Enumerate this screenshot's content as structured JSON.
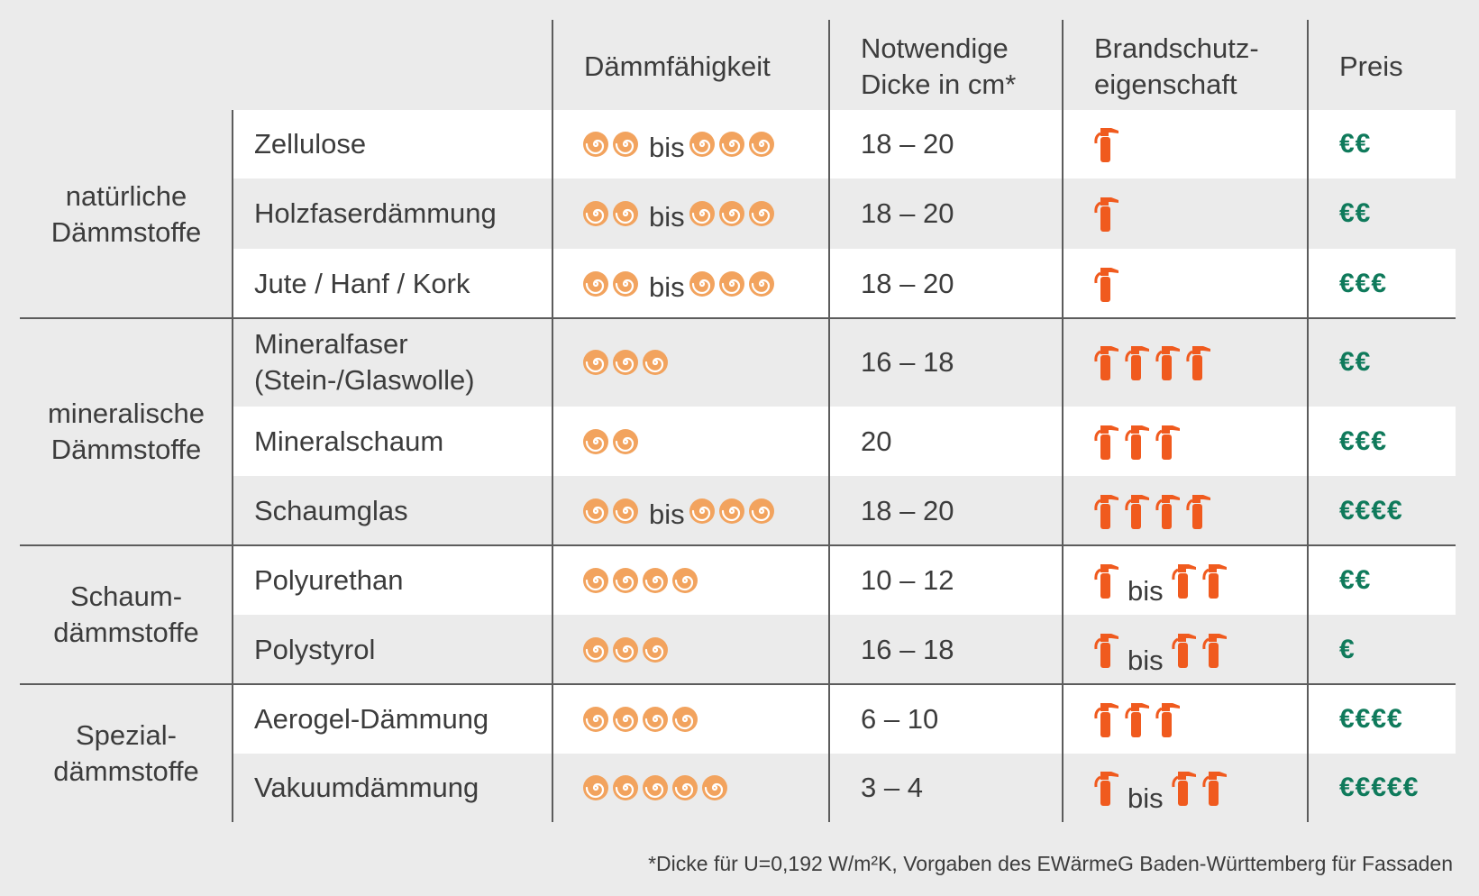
{
  "colors": {
    "background": "#ebebeb",
    "row_alt": "#ffffff",
    "swirl": "#f2a35e",
    "extinguisher": "#f05a1e",
    "price": "#0f7a5b",
    "line": "#5c5c5c"
  },
  "header": {
    "daemm": "Dämmfähigkeit",
    "dicke_1": "Notwendige",
    "dicke_2": "Dicke in cm*",
    "brand_1": "Brandschutz-",
    "brand_2": "eigenschaft",
    "preis": "Preis"
  },
  "groups": [
    {
      "line1": "natürliche",
      "line2": "Dämmstoffe"
    },
    {
      "line1": "mineralische",
      "line2": "Dämmstoffe"
    },
    {
      "line1": "Schaum-",
      "line2": "dämmstoffe"
    },
    {
      "line1": "Spezial-",
      "line2": "dämmstoffe"
    }
  ],
  "bis_label": "bis",
  "rows": [
    {
      "name": "Zellulose",
      "name2": "",
      "daemm_from": 2,
      "daemm_to": 3,
      "dicke": "18 – 20",
      "brand_from": 1,
      "brand_to": 0,
      "preis": "€€"
    },
    {
      "name": "Holzfaserdämmung",
      "name2": "",
      "daemm_from": 2,
      "daemm_to": 3,
      "dicke": "18 – 20",
      "brand_from": 1,
      "brand_to": 0,
      "preis": "€€"
    },
    {
      "name": "Jute / Hanf / Kork",
      "name2": "",
      "daemm_from": 2,
      "daemm_to": 3,
      "dicke": "18 – 20",
      "brand_from": 1,
      "brand_to": 0,
      "preis": "€€€"
    },
    {
      "name": "Mineralfaser",
      "name2": "(Stein-/Glaswolle)",
      "daemm_from": 3,
      "daemm_to": 0,
      "dicke": "16 – 18",
      "brand_from": 4,
      "brand_to": 0,
      "preis": "€€"
    },
    {
      "name": "Mineralschaum",
      "name2": "",
      "daemm_from": 2,
      "daemm_to": 0,
      "dicke": "20",
      "brand_from": 3,
      "brand_to": 0,
      "preis": "€€€"
    },
    {
      "name": "Schaumglas",
      "name2": "",
      "daemm_from": 2,
      "daemm_to": 3,
      "dicke": "18 – 20",
      "brand_from": 4,
      "brand_to": 0,
      "preis": "€€€€"
    },
    {
      "name": "Polyurethan",
      "name2": "",
      "daemm_from": 4,
      "daemm_to": 0,
      "dicke": "10 – 12",
      "brand_from": 1,
      "brand_to": 2,
      "preis": "€€"
    },
    {
      "name": "Polystyrol",
      "name2": "",
      "daemm_from": 3,
      "daemm_to": 0,
      "dicke": "16 – 18",
      "brand_from": 1,
      "brand_to": 2,
      "preis": "€"
    },
    {
      "name": "Aerogel-Dämmung",
      "name2": "",
      "daemm_from": 4,
      "daemm_to": 0,
      "dicke": "6 – 10",
      "brand_from": 3,
      "brand_to": 0,
      "preis": "€€€€"
    },
    {
      "name": "Vakuumdämmung",
      "name2": "",
      "daemm_from": 5,
      "daemm_to": 0,
      "dicke": "3 – 4",
      "brand_from": 1,
      "brand_to": 2,
      "preis": "€€€€€"
    }
  ],
  "footnote": "*Dicke für U=0,192 W/m²K, Vorgaben des EWärmeG Baden-Württemberg für Fassaden"
}
